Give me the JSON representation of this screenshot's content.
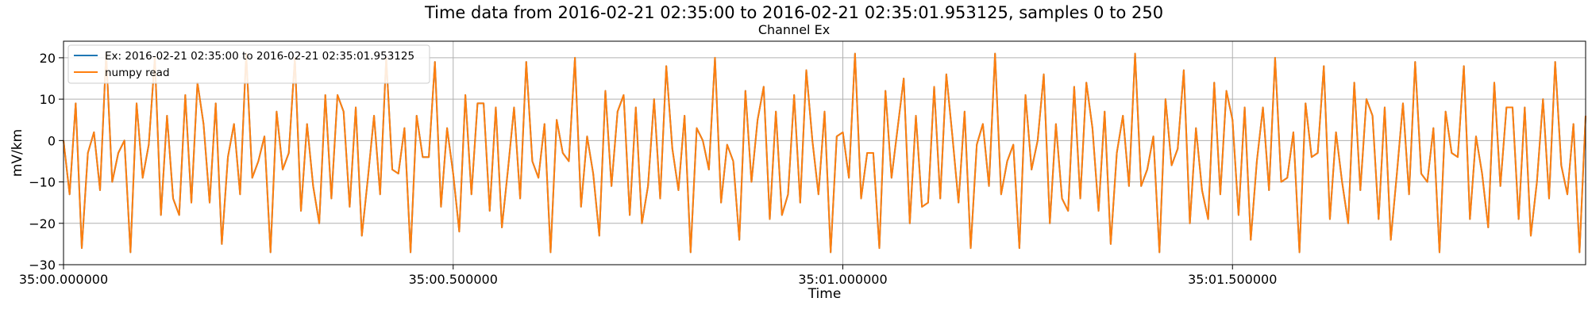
{
  "chart_data": {
    "type": "line",
    "title": "Time data from 2016-02-21 02:35:00 to 2016-02-21 02:35:01.953125, samples 0 to 250",
    "subtitle": "Channel Ex",
    "xlabel": "Time",
    "ylabel": "mV/km",
    "xlim": [
      0,
      1.953125
    ],
    "ylim": [
      -30,
      24
    ],
    "grid": true,
    "legend_position": "top-left",
    "x_ticks": [
      {
        "value": 0.0,
        "label": "35:00.000000"
      },
      {
        "value": 0.5,
        "label": "35:00.500000"
      },
      {
        "value": 1.0,
        "label": "35:01.000000"
      },
      {
        "value": 1.5,
        "label": "35:01.500000"
      }
    ],
    "y_ticks": [
      {
        "value": 20,
        "label": "20"
      },
      {
        "value": 10,
        "label": "10"
      },
      {
        "value": 0,
        "label": "0"
      },
      {
        "value": -10,
        "label": "−10"
      },
      {
        "value": -20,
        "label": "−20"
      },
      {
        "value": -30,
        "label": "−30"
      }
    ],
    "sample_interval": 0.0078125,
    "series": [
      {
        "name": "Ex: 2016-02-21 02:35:00 to 2016-02-21 02:35:01.953125",
        "color": "#1f77b4"
      },
      {
        "name": "numpy read",
        "color": "#ff7f0e"
      }
    ],
    "values": [
      0,
      -13,
      9,
      -26,
      -3,
      2,
      -12,
      21,
      -10,
      -3,
      0,
      -27,
      9,
      -9,
      -1,
      20,
      -18,
      6,
      -14,
      -18,
      11,
      -15,
      14,
      4,
      -15,
      9,
      -25,
      -4,
      4,
      -13,
      21,
      -9,
      -5,
      1,
      -27,
      7,
      -7,
      -3,
      20,
      -17,
      4,
      -11,
      -20,
      11,
      -14,
      11,
      7,
      -16,
      8,
      -23,
      -9,
      6,
      -13,
      20,
      -7,
      -8,
      3,
      -27,
      6,
      -4,
      -4,
      19,
      -16,
      3,
      -8,
      -22,
      11,
      -13,
      9,
      9,
      -17,
      8,
      -21,
      -7,
      8,
      -14,
      19,
      -5,
      -9,
      4,
      -27,
      5,
      -3,
      -5,
      20,
      -16,
      1,
      -8,
      -23,
      12,
      -11,
      7,
      11,
      -18,
      8,
      -20,
      -11,
      10,
      -14,
      18,
      -2,
      -12,
      6,
      -27,
      3,
      0,
      -7,
      20,
      -15,
      -1,
      -5,
      -24,
      12,
      -10,
      5,
      13,
      -19,
      7,
      -18,
      -13,
      11,
      -15,
      17,
      0,
      -13,
      7,
      -27,
      1,
      2,
      -9,
      21,
      -14,
      -3,
      -3,
      -26,
      12,
      -9,
      3,
      15,
      -20,
      6,
      -16,
      -15,
      13,
      -14,
      16,
      1,
      -15,
      7,
      -26,
      -1,
      4,
      -11,
      21,
      -13,
      -5,
      -1,
      -26,
      11,
      -7,
      0,
      16,
      -20,
      4,
      -14,
      -17,
      13,
      -14,
      14,
      3,
      -17,
      7,
      -25,
      -3,
      6,
      -11,
      21,
      -11,
      -7,
      1,
      -27,
      10,
      -6,
      -2,
      17,
      -20,
      3,
      -12,
      -19,
      14,
      -13,
      12,
      5,
      -18,
      8,
      -24,
      -5,
      8,
      -12,
      20,
      -10,
      -9,
      2,
      -27,
      9,
      -4,
      -3,
      18,
      -19,
      2,
      -10,
      -20,
      14,
      -12,
      10,
      6,
      -19,
      8,
      -24,
      -8,
      9,
      -13,
      19,
      -8,
      -10,
      3,
      -27,
      7,
      -3,
      -4,
      18,
      -19,
      1,
      -8,
      -21,
      14,
      -11,
      8,
      8,
      -19,
      8,
      -23,
      -10,
      10,
      -14,
      19,
      -6,
      -13,
      4,
      -27,
      6
    ]
  }
}
